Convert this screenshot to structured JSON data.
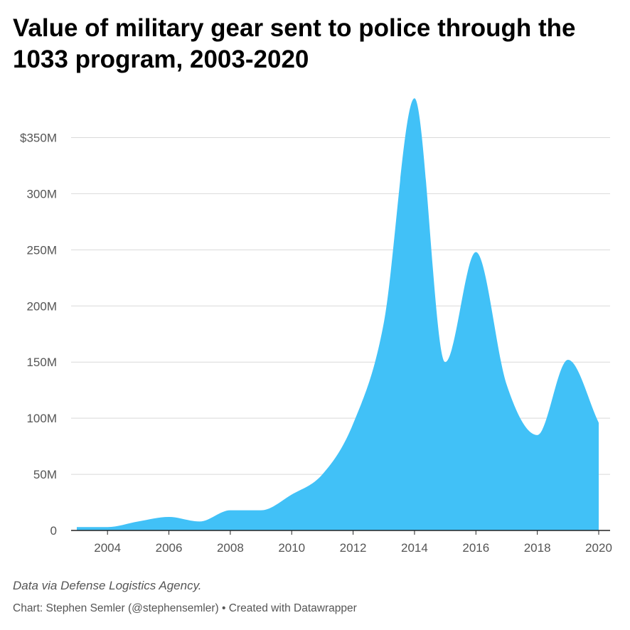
{
  "title": "Value of military gear sent to police through the 1033 program, 2003-2020",
  "notes": "Data via Defense Logistics Agency.",
  "credit": "Chart: Stephen Semler (@stephensemler) • Created with Datawrapper",
  "colors": {
    "area": "#41c1f7",
    "grid": "#d9d9d9",
    "axis": "#222222",
    "tick_text": "#555555"
  },
  "chart_data": {
    "type": "area",
    "x": [
      2003,
      2004,
      2005,
      2006,
      2007,
      2008,
      2009,
      2010,
      2011,
      2012,
      2013,
      2014,
      2015,
      2016,
      2017,
      2018,
      2019,
      2020
    ],
    "values": [
      3,
      3,
      8,
      12,
      8,
      18,
      18,
      32,
      50,
      95,
      185,
      385,
      150,
      248,
      130,
      85,
      152,
      96
    ],
    "unit": "USD millions",
    "xlim": [
      2003,
      2020
    ],
    "ylim": [
      0,
      350
    ],
    "y_ticks": [
      {
        "value": 0,
        "label": "0"
      },
      {
        "value": 50,
        "label": "50M"
      },
      {
        "value": 100,
        "label": "100M"
      },
      {
        "value": 150,
        "label": "150M"
      },
      {
        "value": 200,
        "label": "200M"
      },
      {
        "value": 250,
        "label": "250M"
      },
      {
        "value": 300,
        "label": "300M"
      },
      {
        "value": 350,
        "label": "$350M"
      }
    ],
    "x_ticks": [
      {
        "value": 2004,
        "label": "2004"
      },
      {
        "value": 2006,
        "label": "2006"
      },
      {
        "value": 2008,
        "label": "2008"
      },
      {
        "value": 2010,
        "label": "2010"
      },
      {
        "value": 2012,
        "label": "2012"
      },
      {
        "value": 2014,
        "label": "2014"
      },
      {
        "value": 2016,
        "label": "2016"
      },
      {
        "value": 2018,
        "label": "2018"
      },
      {
        "value": 2020,
        "label": "2020"
      }
    ],
    "grid": true,
    "legend": "none"
  }
}
